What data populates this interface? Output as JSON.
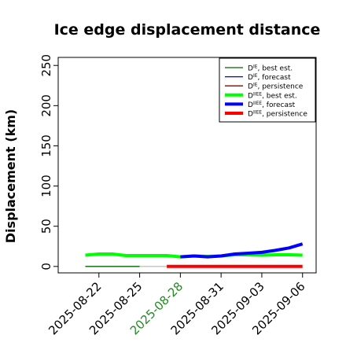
{
  "chart_data": {
    "type": "line",
    "title": "Ice edge displacement distance",
    "xlabel": "",
    "ylabel": "Displacement (km)",
    "ylim": [
      -8,
      260
    ],
    "xlim": [
      "2025-08-19",
      "2025-09-07"
    ],
    "yticks": [
      "0",
      "50",
      "100",
      "150",
      "200",
      "250"
    ],
    "xticks": [
      {
        "label": "2025-08-22",
        "color": "#000000"
      },
      {
        "label": "2025-08-25",
        "color": "#000000"
      },
      {
        "label": "2025-08-28",
        "color": "#228B22"
      },
      {
        "label": "2025-08-31",
        "color": "#000000"
      },
      {
        "label": "2025-09-03",
        "color": "#000000"
      },
      {
        "label": "2025-09-06",
        "color": "#000000"
      }
    ],
    "grid": false,
    "legend_position": "top-right",
    "series": [
      {
        "name": "D^IE, best est.",
        "color": "#006400",
        "width": "thin",
        "x": [
          "2025-08-21",
          "2025-08-22",
          "2025-08-23",
          "2025-08-24",
          "2025-08-25"
        ],
        "y": [
          0,
          0,
          0,
          0,
          0
        ]
      },
      {
        "name": "D^IE, forecast",
        "color": "#0000ff",
        "width": "thin",
        "x": [],
        "y": []
      },
      {
        "name": "D^IE, persistence",
        "color": "#8b0000",
        "width": "thin",
        "x": [],
        "y": []
      },
      {
        "name": "D^IIEE, best est.",
        "color": "#00ff00",
        "width": "thick",
        "x": [
          "2025-08-21",
          "2025-08-22",
          "2025-08-23",
          "2025-08-24",
          "2025-08-25",
          "2025-08-27",
          "2025-08-28",
          "2025-08-29",
          "2025-08-30",
          "2025-08-31",
          "2025-09-01",
          "2025-09-02",
          "2025-09-03",
          "2025-09-04",
          "2025-09-05",
          "2025-09-06"
        ],
        "y": [
          14,
          15.5,
          15.5,
          13.5,
          13.5,
          13.5,
          12,
          13,
          12.5,
          13,
          14.5,
          14.5,
          14,
          14.5,
          14.5,
          14
        ]
      },
      {
        "name": "D^IIEE, forecast",
        "color": "#0000ff",
        "width": "thick",
        "x": [
          "2025-08-28",
          "2025-08-29",
          "2025-08-30",
          "2025-08-31",
          "2025-09-01",
          "2025-09-02",
          "2025-09-03",
          "2025-09-04",
          "2025-09-05",
          "2025-09-06"
        ],
        "y": [
          12,
          13,
          12,
          13,
          15.5,
          16.5,
          17.5,
          20,
          23,
          28
        ]
      },
      {
        "name": "D^IIEE, persistence",
        "color": "#ff0000",
        "width": "thick",
        "x": [
          "2025-08-27",
          "2025-08-28",
          "2025-08-29",
          "2025-08-30",
          "2025-08-31",
          "2025-09-01",
          "2025-09-02",
          "2025-09-03",
          "2025-09-04",
          "2025-09-05",
          "2025-09-06"
        ],
        "y": [
          0,
          0,
          0,
          0,
          0,
          0,
          0,
          0,
          0,
          0,
          0
        ]
      }
    ],
    "connectors": [
      {
        "color": "#aaaaaa",
        "x": [
          "2025-08-25",
          "2025-08-27"
        ],
        "y": [
          0,
          0
        ]
      },
      {
        "color": "#aaaaaa",
        "x": [
          "2025-08-25",
          "2025-08-27"
        ],
        "y": [
          13.5,
          13.5
        ]
      }
    ],
    "legend": [
      {
        "base": "D",
        "sup": "IE",
        "rest": ", best est.",
        "color": "#006400",
        "thick": false
      },
      {
        "base": "D",
        "sup": "IE",
        "rest": ", forecast",
        "color": "#0000ff",
        "thick": false
      },
      {
        "base": "D",
        "sup": "IE",
        "rest": ", persistence",
        "color": "#8b0000",
        "thick": false
      },
      {
        "base": "D",
        "sup": "IIEE",
        "rest": ", best est.",
        "color": "#00ff00",
        "thick": true
      },
      {
        "base": "D",
        "sup": "IIEE",
        "rest": ", forecast",
        "color": "#0000ff",
        "thick": true
      },
      {
        "base": "D",
        "sup": "IIEE",
        "rest": ", persistence",
        "color": "#ff0000",
        "thick": true
      }
    ]
  }
}
